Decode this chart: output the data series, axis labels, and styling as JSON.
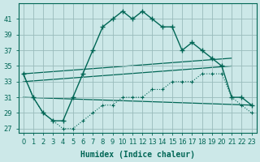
{
  "bg_color": "#cce8e8",
  "grid_color": "#99bbbb",
  "line_color": "#006655",
  "xlabel": "Humidex (Indice chaleur)",
  "xlim_min": -0.5,
  "xlim_max": 23.5,
  "ylim_min": 26.5,
  "ylim_max": 43.0,
  "xticks": [
    0,
    1,
    2,
    3,
    4,
    5,
    6,
    7,
    8,
    9,
    10,
    11,
    12,
    13,
    14,
    15,
    16,
    17,
    18,
    19,
    20,
    21,
    22,
    23
  ],
  "yticks": [
    27,
    29,
    31,
    33,
    35,
    37,
    39,
    41
  ],
  "curve_main_x": [
    0,
    1,
    2,
    3,
    4,
    5,
    6,
    7,
    8,
    9,
    10,
    11,
    12,
    13,
    14,
    15,
    16,
    17,
    18,
    19,
    20,
    21,
    22,
    23
  ],
  "curve_main_y": [
    34,
    31,
    29,
    28,
    28,
    31,
    34,
    37,
    40,
    41,
    42,
    41,
    42,
    41,
    40,
    40,
    37,
    38,
    37,
    36,
    35,
    31,
    31,
    30
  ],
  "curve_dotted_x": [
    0,
    1,
    2,
    3,
    4,
    5,
    6,
    7,
    8,
    9,
    10,
    11,
    12,
    13,
    14,
    15,
    16,
    17,
    18,
    19,
    20,
    21,
    22,
    23
  ],
  "curve_dotted_y": [
    34,
    31,
    29,
    28,
    27,
    27,
    28,
    29,
    30,
    30,
    31,
    31,
    31,
    32,
    32,
    33,
    33,
    33,
    34,
    34,
    34,
    31,
    30,
    29
  ],
  "line_upper_x0": 0,
  "line_upper_y0": 34,
  "line_upper_x1": 21,
  "line_upper_y1": 36,
  "line_mid_x0": 0,
  "line_mid_y0": 33,
  "line_mid_x1": 21,
  "line_mid_y1": 35,
  "line_lower_x0": 0,
  "line_lower_y0": 31,
  "line_lower_x1": 23,
  "line_lower_y1": 30
}
